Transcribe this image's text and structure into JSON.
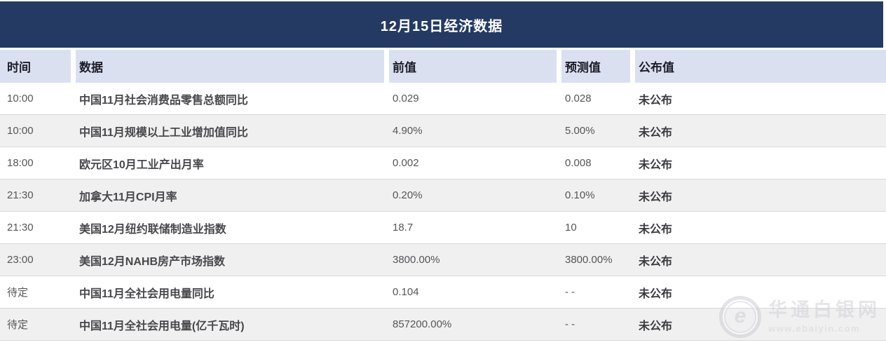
{
  "title": "12月15日经济数据",
  "table": {
    "headers": [
      "时间",
      "数据",
      "前值",
      "预测值",
      "公布值"
    ],
    "rows": [
      {
        "time": "10:00",
        "name": "中国11月社会消费品零售总额同比",
        "prev": "0.029",
        "forecast": "0.028",
        "published": "未公布"
      },
      {
        "time": "10:00",
        "name": "中国11月规模以上工业增加值同比",
        "prev": "4.90%",
        "forecast": "5.00%",
        "published": "未公布"
      },
      {
        "time": "18:00",
        "name": "欧元区10月工业产出月率",
        "prev": "0.002",
        "forecast": "0.008",
        "published": "未公布"
      },
      {
        "time": "21:30",
        "name": "加拿大11月CPI月率",
        "prev": "0.20%",
        "forecast": "0.10%",
        "published": "未公布"
      },
      {
        "time": "21:30",
        "name": "美国12月纽约联储制造业指数",
        "prev": "18.7",
        "forecast": "10",
        "published": "未公布"
      },
      {
        "time": "23:00",
        "name": "美国12月NAHB房产市场指数",
        "prev": "3800.00%",
        "forecast": "3800.00%",
        "published": "未公布"
      },
      {
        "time": "待定",
        "name": "中国11月全社会用电量同比",
        "prev": "0.104",
        "forecast": "- -",
        "published": "未公布"
      },
      {
        "time": "待定",
        "name": "中国11月全社会用电量(亿千瓦时)",
        "prev": "857200.00%",
        "forecast": "- -",
        "published": "未公布"
      }
    ]
  },
  "watermark": {
    "logo_letter": "e",
    "site_name": "华通白银网",
    "url": "www.ebaiyin.com"
  },
  "colors": {
    "title_bar": "#243A63",
    "header_bg": "#DBE0F1",
    "stripe_bg": "#F0F0F0",
    "divider": "#D8D8D8"
  }
}
